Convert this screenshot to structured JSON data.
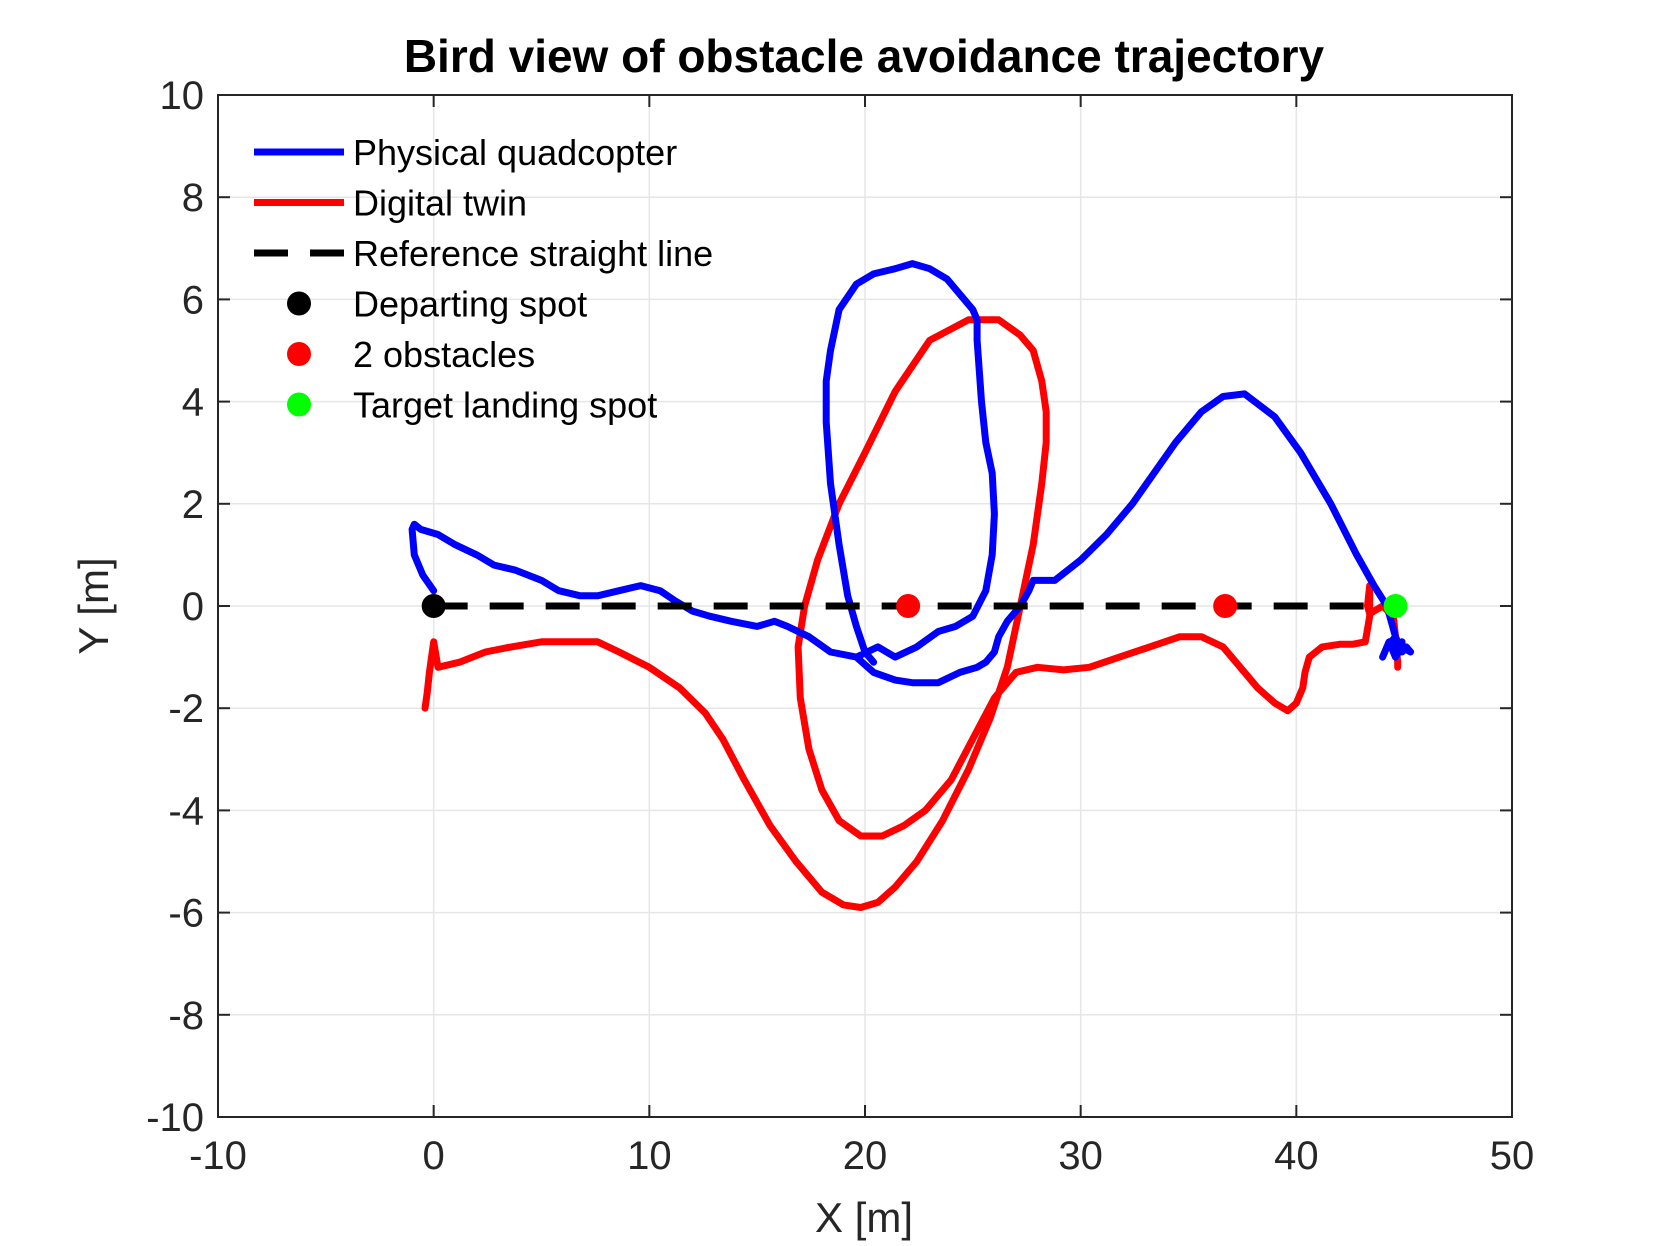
{
  "chart_data": {
    "type": "line",
    "title": "Bird view of obstacle avoidance trajectory",
    "xlabel": "X [m]",
    "ylabel": "Y [m]",
    "xlim": [
      -10,
      50
    ],
    "ylim": [
      -10,
      10
    ],
    "xticks": [
      -10,
      0,
      10,
      20,
      30,
      40,
      50
    ],
    "yticks": [
      -10,
      -8,
      -6,
      -4,
      -2,
      0,
      2,
      4,
      6,
      8,
      10
    ],
    "grid": true,
    "legend_position": "top-left",
    "colors": {
      "physical": "#0000ff",
      "digital": "#ff0000",
      "reference": "#000000",
      "depart": "#000000",
      "obstacle": "#ff0000",
      "target": "#00ff00"
    },
    "series": [
      {
        "name": "Physical quadcopter",
        "style": "line",
        "x": [
          0.0,
          -0.5,
          -0.9,
          -1.0,
          -0.9,
          -0.6,
          0.2,
          1.0,
          2.0,
          2.8,
          3.8,
          5.0,
          5.8,
          6.8,
          7.6,
          8.6,
          9.6,
          10.5,
          11.2,
          12.0,
          12.8,
          13.8,
          15.0,
          15.8,
          16.4,
          17.4,
          18.4,
          19.6,
          20.4,
          21.4,
          22.2,
          23.4,
          24.4,
          25.2,
          25.6,
          26.0,
          26.2,
          26.6,
          27.2,
          27.6,
          27.8,
          28.8,
          30.0,
          31.2,
          32.4,
          33.4,
          34.4,
          35.6,
          36.6,
          37.6,
          39.0,
          40.2,
          41.6,
          42.8,
          43.6,
          44.2,
          44.4,
          44.6,
          44.8,
          44.9,
          44.9,
          45.1,
          45.3,
          44.9,
          44.6,
          44.3,
          44.0,
          44.2,
          44.6,
          44.8
        ],
        "y": [
          0.3,
          0.6,
          1.0,
          1.5,
          1.6,
          1.5,
          1.4,
          1.2,
          1.0,
          0.8,
          0.7,
          0.5,
          0.3,
          0.2,
          0.2,
          0.3,
          0.4,
          0.3,
          0.1,
          -0.1,
          -0.2,
          -0.3,
          -0.4,
          -0.3,
          -0.4,
          -0.6,
          -0.9,
          -1.0,
          -1.3,
          -1.45,
          -1.5,
          -1.5,
          -1.3,
          -1.2,
          -1.1,
          -0.9,
          -0.6,
          -0.3,
          0.0,
          0.3,
          0.5,
          0.5,
          0.9,
          1.4,
          2.0,
          2.6,
          3.2,
          3.8,
          4.1,
          4.15,
          3.7,
          3.0,
          2.0,
          1.0,
          0.4,
          0.0,
          -0.3,
          -0.6,
          -0.8,
          -0.7,
          -0.9,
          -0.8,
          -0.9,
          -0.8,
          -1.0,
          -0.7,
          -1.0,
          -0.8,
          -0.6,
          -0.9
        ]
      },
      {
        "name": "Physical quadcopter loop",
        "style": "line-continuation",
        "x": [
          19.6,
          20.6,
          21.4,
          22.4,
          23.4,
          24.2,
          25.0,
          25.6,
          25.9,
          26.0,
          25.9,
          25.6,
          25.4,
          25.3,
          25.2,
          25.2,
          25.0,
          24.6,
          23.8,
          23.0,
          22.2,
          21.4,
          20.4,
          19.6,
          18.8,
          18.4,
          18.2,
          18.2,
          18.4,
          18.8,
          19.2,
          19.6,
          20.0,
          20.4
        ],
        "y": [
          -1.0,
          -0.8,
          -1.0,
          -0.8,
          -0.5,
          -0.4,
          -0.2,
          0.3,
          1.0,
          1.8,
          2.6,
          3.2,
          4.0,
          4.6,
          5.2,
          5.6,
          5.8,
          6.0,
          6.4,
          6.6,
          6.7,
          6.6,
          6.5,
          6.3,
          5.8,
          5.0,
          4.4,
          3.6,
          2.4,
          1.2,
          0.2,
          -0.4,
          -0.9,
          -1.1
        ]
      },
      {
        "name": "Digital twin",
        "style": "line",
        "x": [
          -0.4,
          -0.3,
          -0.2,
          0.0,
          0.2,
          1.2,
          2.4,
          3.6,
          5.0,
          6.4,
          7.6,
          8.6,
          10.0,
          11.4,
          12.6,
          13.4,
          14.4,
          15.6,
          16.8,
          18.0,
          19.0,
          19.8,
          20.6,
          21.4,
          22.4,
          23.6,
          24.8,
          25.8,
          26.6,
          27.2,
          27.8,
          28.2,
          28.4,
          28.4,
          28.2,
          27.8,
          27.2,
          26.2,
          24.8,
          23.0,
          21.4,
          20.0,
          18.8,
          17.8,
          17.2,
          16.9,
          17.0,
          17.4,
          18.0,
          18.8,
          19.8,
          20.8,
          21.8,
          22.8,
          24.0,
          25.0,
          26.0,
          27.0,
          28.0,
          29.2,
          30.4,
          31.8,
          33.2,
          34.6,
          35.6,
          36.6,
          37.4,
          38.2,
          39.0,
          39.6,
          40.0,
          40.3,
          40.4,
          40.6,
          41.2,
          42.0,
          42.6,
          43.2,
          43.4,
          43.4,
          43.3,
          43.4,
          43.6,
          44.0,
          44.5,
          44.6,
          44.7,
          44.7
        ],
        "y": [
          -2.0,
          -1.7,
          -1.3,
          -0.7,
          -1.2,
          -1.1,
          -0.9,
          -0.8,
          -0.7,
          -0.7,
          -0.7,
          -0.9,
          -1.2,
          -1.6,
          -2.1,
          -2.6,
          -3.4,
          -4.3,
          -5.0,
          -5.6,
          -5.85,
          -5.9,
          -5.8,
          -5.5,
          -5.0,
          -4.2,
          -3.2,
          -2.2,
          -1.2,
          0.0,
          1.2,
          2.4,
          3.2,
          3.8,
          4.4,
          5.0,
          5.3,
          5.6,
          5.6,
          5.2,
          4.2,
          3.0,
          2.0,
          0.9,
          0.0,
          -0.8,
          -1.8,
          -2.8,
          -3.6,
          -4.2,
          -4.5,
          -4.5,
          -4.3,
          -4.0,
          -3.4,
          -2.6,
          -1.8,
          -1.3,
          -1.2,
          -1.25,
          -1.2,
          -1.0,
          -0.8,
          -0.6,
          -0.6,
          -0.8,
          -1.2,
          -1.6,
          -1.9,
          -2.05,
          -1.9,
          -1.6,
          -1.3,
          -1.0,
          -0.8,
          -0.75,
          -0.75,
          -0.7,
          -0.2,
          0.4,
          0.0,
          -0.15,
          -0.1,
          0.0,
          -0.2,
          -0.6,
          -1.1,
          -1.2
        ]
      },
      {
        "name": "Reference straight line",
        "style": "dashed",
        "x": [
          0,
          44.6
        ],
        "y": [
          0,
          0
        ]
      },
      {
        "name": "Departing spot",
        "style": "marker",
        "x": [
          0
        ],
        "y": [
          0
        ]
      },
      {
        "name": "2 obstacles",
        "style": "marker",
        "x": [
          22.0,
          36.7
        ],
        "y": [
          0,
          0
        ]
      },
      {
        "name": "Target landing spot",
        "style": "marker",
        "x": [
          44.6
        ],
        "y": [
          0
        ]
      }
    ],
    "legend": [
      {
        "label": "Physical quadcopter",
        "kind": "line",
        "color_key": "physical"
      },
      {
        "label": "Digital twin",
        "kind": "line",
        "color_key": "digital"
      },
      {
        "label": "Reference straight line",
        "kind": "dash",
        "color_key": "reference"
      },
      {
        "label": "Departing spot",
        "kind": "marker",
        "color_key": "depart"
      },
      {
        "label": "2 obstacles",
        "kind": "marker",
        "color_key": "obstacle"
      },
      {
        "label": "Target landing spot",
        "kind": "marker",
        "color_key": "target"
      }
    ]
  }
}
